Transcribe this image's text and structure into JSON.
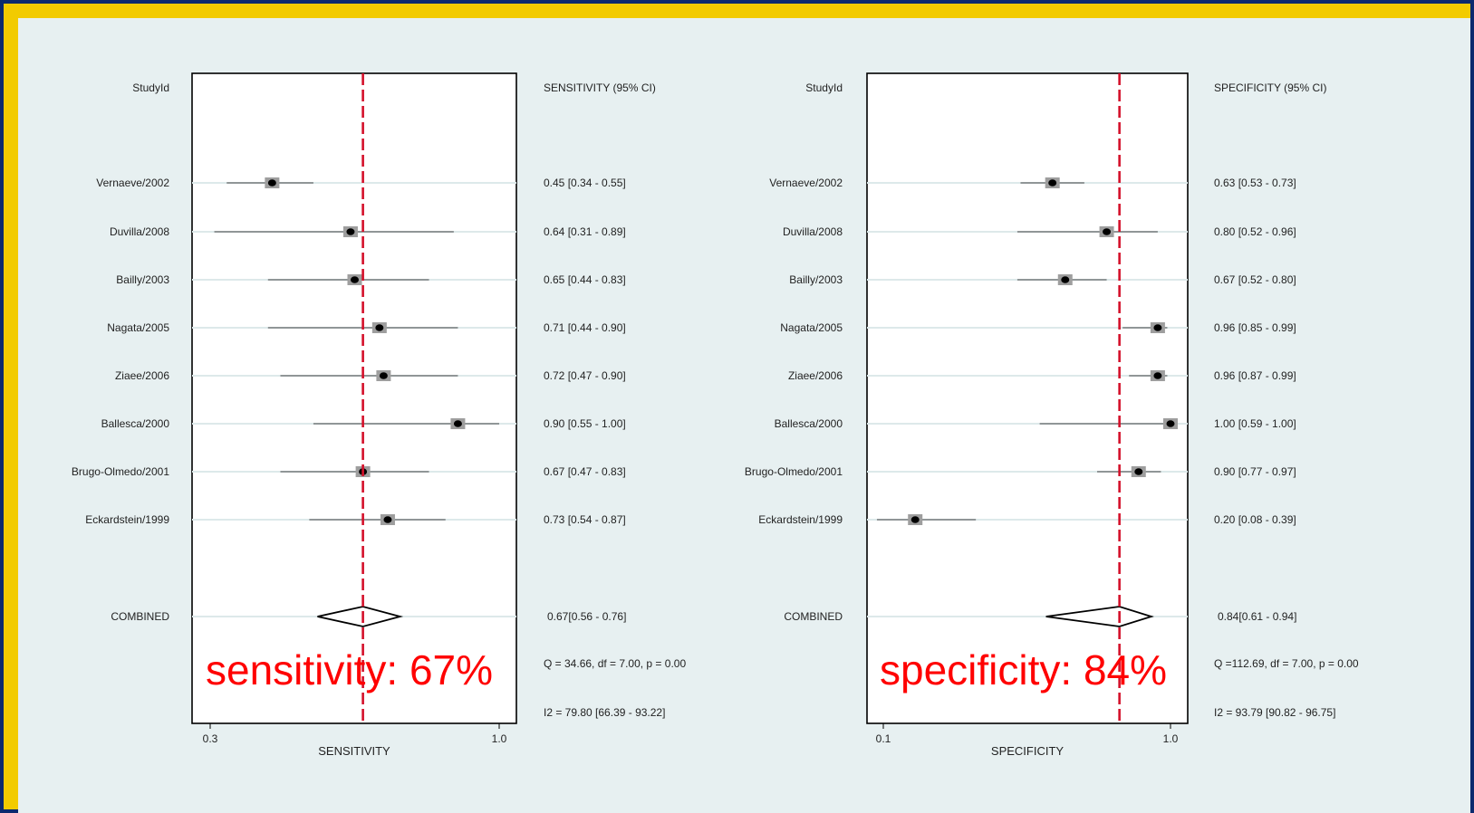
{
  "chart_data": [
    {
      "type": "forest",
      "studyid_header": "StudyId",
      "ci_header": "SENSITIVITY (95% CI)",
      "xlabel": "SENSITIVITY",
      "xticks": [
        "0.3",
        "1.0"
      ],
      "xlim": [
        0.3,
        1.0
      ],
      "studies": [
        {
          "name": "Vernaeve/2002",
          "est": 0.45,
          "lo": 0.34,
          "hi": 0.55,
          "ci_text": "0.45 [0.34 - 0.55]"
        },
        {
          "name": "Duvilla/2008",
          "est": 0.64,
          "lo": 0.31,
          "hi": 0.89,
          "ci_text": "0.64 [0.31 - 0.89]"
        },
        {
          "name": "Bailly/2003",
          "est": 0.65,
          "lo": 0.44,
          "hi": 0.83,
          "ci_text": "0.65 [0.44 - 0.83]"
        },
        {
          "name": "Nagata/2005",
          "est": 0.71,
          "lo": 0.44,
          "hi": 0.9,
          "ci_text": "0.71 [0.44 - 0.90]"
        },
        {
          "name": "Ziaee/2006",
          "est": 0.72,
          "lo": 0.47,
          "hi": 0.9,
          "ci_text": "0.72 [0.47 - 0.90]"
        },
        {
          "name": "Ballesca/2000",
          "est": 0.9,
          "lo": 0.55,
          "hi": 1.0,
          "ci_text": "0.90 [0.55 - 1.00]"
        },
        {
          "name": "Brugo-Olmedo/2001",
          "est": 0.67,
          "lo": 0.47,
          "hi": 0.83,
          "ci_text": "0.67 [0.47 - 0.83]"
        },
        {
          "name": "Eckardstein/1999",
          "est": 0.73,
          "lo": 0.54,
          "hi": 0.87,
          "ci_text": "0.73 [0.54 - 0.87]"
        }
      ],
      "combined": {
        "name": "COMBINED",
        "est": 0.67,
        "lo": 0.56,
        "hi": 0.76,
        "ci_text": "0.67[0.56 - 0.76]"
      },
      "heterogeneity": [
        "Q = 34.66, df = 7.00, p =  0.00",
        "I2 = 79.80 [66.39 - 93.22]"
      ],
      "annotation": "sensitivity: 67%"
    },
    {
      "type": "forest",
      "studyid_header": "StudyId",
      "ci_header": "SPECIFICITY (95% CI)",
      "xlabel": "SPECIFICITY",
      "xticks": [
        "0.1",
        "1.0"
      ],
      "xlim": [
        0.1,
        1.0
      ],
      "studies": [
        {
          "name": "Vernaeve/2002",
          "est": 0.63,
          "lo": 0.53,
          "hi": 0.73,
          "ci_text": "0.63 [0.53 - 0.73]"
        },
        {
          "name": "Duvilla/2008",
          "est": 0.8,
          "lo": 0.52,
          "hi": 0.96,
          "ci_text": "0.80 [0.52 - 0.96]"
        },
        {
          "name": "Bailly/2003",
          "est": 0.67,
          "lo": 0.52,
          "hi": 0.8,
          "ci_text": "0.67 [0.52 - 0.80]"
        },
        {
          "name": "Nagata/2005",
          "est": 0.96,
          "lo": 0.85,
          "hi": 0.99,
          "ci_text": "0.96 [0.85 - 0.99]"
        },
        {
          "name": "Ziaee/2006",
          "est": 0.96,
          "lo": 0.87,
          "hi": 0.99,
          "ci_text": "0.96 [0.87 - 0.99]"
        },
        {
          "name": "Ballesca/2000",
          "est": 1.0,
          "lo": 0.59,
          "hi": 1.0,
          "ci_text": "1.00 [0.59 - 1.00]"
        },
        {
          "name": "Brugo-Olmedo/2001",
          "est": 0.9,
          "lo": 0.77,
          "hi": 0.97,
          "ci_text": "0.90 [0.77 - 0.97]"
        },
        {
          "name": "Eckardstein/1999",
          "est": 0.2,
          "lo": 0.08,
          "hi": 0.39,
          "ci_text": "0.20 [0.08 - 0.39]"
        }
      ],
      "combined": {
        "name": "COMBINED",
        "est": 0.84,
        "lo": 0.61,
        "hi": 0.94,
        "ci_text": "0.84[0.61 - 0.94]"
      },
      "heterogeneity": [
        "Q =112.69, df = 7.00, p =  0.00",
        "I2 = 93.79 [90.82 - 96.75]"
      ],
      "annotation": "specificity: 84%"
    }
  ],
  "colors": {
    "reference_line": "#d4102a",
    "marker_box": "#9e9e9e",
    "point": "#000000",
    "annotation": "#ff0000",
    "frame": "#f2cb00",
    "background": "#e7f0f1"
  }
}
